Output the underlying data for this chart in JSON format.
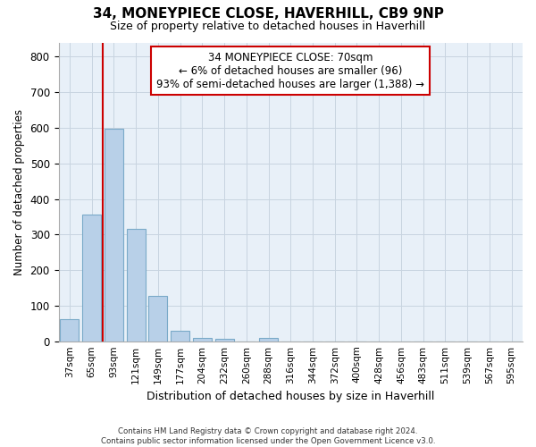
{
  "title": "34, MONEYPIECE CLOSE, HAVERHILL, CB9 9NP",
  "subtitle": "Size of property relative to detached houses in Haverhill",
  "xlabel": "Distribution of detached houses by size in Haverhill",
  "ylabel": "Number of detached properties",
  "categories": [
    "37sqm",
    "65sqm",
    "93sqm",
    "121sqm",
    "149sqm",
    "177sqm",
    "204sqm",
    "232sqm",
    "260sqm",
    "288sqm",
    "316sqm",
    "344sqm",
    "372sqm",
    "400sqm",
    "428sqm",
    "456sqm",
    "483sqm",
    "511sqm",
    "539sqm",
    "567sqm",
    "595sqm"
  ],
  "values": [
    62,
    357,
    597,
    315,
    128,
    30,
    8,
    6,
    0,
    10,
    0,
    0,
    0,
    0,
    0,
    0,
    0,
    0,
    0,
    0,
    0
  ],
  "bar_color": "#b8d0e8",
  "bar_edge_color": "#7aaac8",
  "red_line_x": 1.5,
  "highlight_color": "#cc0000",
  "annotation_line1": "34 MONEYPIECE CLOSE: 70sqm",
  "annotation_line2": "← 6% of detached houses are smaller (96)",
  "annotation_line3": "93% of semi-detached houses are larger (1,388) →",
  "annotation_box_color": "#ffffff",
  "annotation_box_edge": "#cc0000",
  "ylim": [
    0,
    840
  ],
  "yticks": [
    0,
    100,
    200,
    300,
    400,
    500,
    600,
    700,
    800
  ],
  "grid_color": "#c8d4e0",
  "bg_color": "#e8f0f8",
  "title_fontsize": 11,
  "subtitle_fontsize": 9,
  "footer1": "Contains HM Land Registry data © Crown copyright and database right 2024.",
  "footer2": "Contains public sector information licensed under the Open Government Licence v3.0."
}
